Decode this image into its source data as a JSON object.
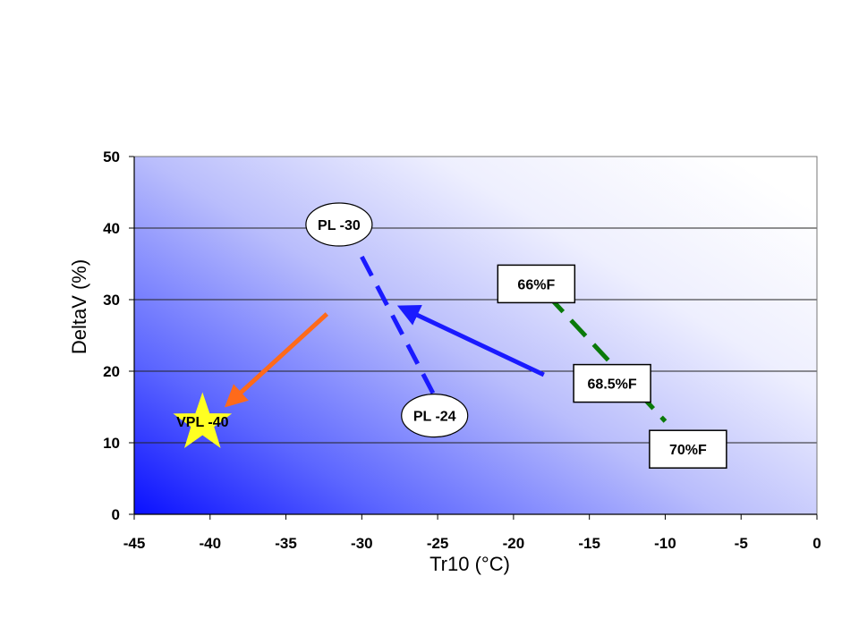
{
  "chart_data": {
    "type": "scatter",
    "xlabel": "Tr10 (°C)",
    "ylabel": "DeltaV (%)",
    "xlim": [
      -45,
      0
    ],
    "ylim": [
      0,
      50
    ],
    "x_ticks": [
      -45,
      -40,
      -35,
      -30,
      -25,
      -20,
      -15,
      -10,
      -5,
      0
    ],
    "y_ticks": [
      0,
      10,
      20,
      30,
      40,
      50
    ],
    "grid": "horizontal",
    "background": "blue gradient, strongest at lower-left",
    "lines": [
      {
        "color": "#1a1aff",
        "style": "dashed",
        "x": [
          -30,
          -25.2
        ],
        "y": [
          36,
          16.5
        ]
      },
      {
        "color": "#0a7a0a",
        "style": "dashed",
        "x": [
          -17.7,
          -10
        ],
        "y": [
          30.5,
          13
        ]
      }
    ],
    "arrows": [
      {
        "color": "#1a1aff",
        "from": [
          -18,
          19.5
        ],
        "to": [
          -27,
          28.5
        ]
      },
      {
        "color": "#ff6a1a",
        "from": [
          -32.3,
          28
        ],
        "to": [
          -38.5,
          16
        ]
      }
    ],
    "annotations": [
      {
        "text": "PL -30",
        "shape": "ellipse",
        "x": -31.5,
        "y": 40.5
      },
      {
        "text": "PL -24",
        "shape": "ellipse",
        "x": -25.2,
        "y": 13.8
      },
      {
        "text": "66%F",
        "shape": "box",
        "x": -18.5,
        "y": 32.2
      },
      {
        "text": "68.5%F",
        "shape": "box",
        "x": -13.5,
        "y": 18.3
      },
      {
        "text": "70%F",
        "shape": "box",
        "x": -8.5,
        "y": 9.1
      }
    ],
    "marker": {
      "text": "VPL -40",
      "shape": "star",
      "color": "#ffff22",
      "x": -40.5,
      "y": 13
    }
  }
}
